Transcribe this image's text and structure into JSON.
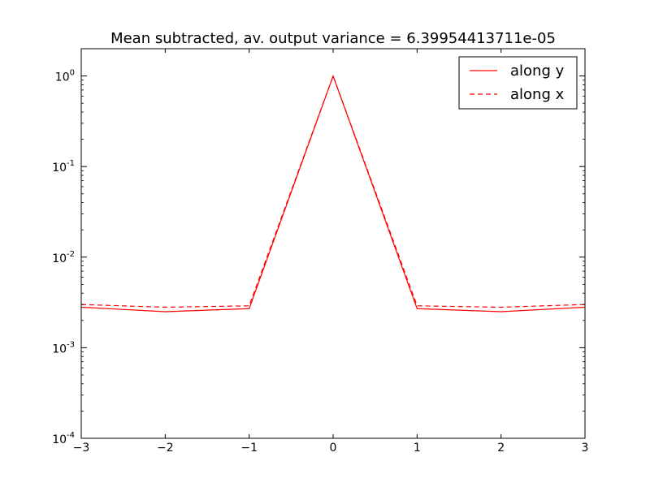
{
  "chart_data": {
    "type": "line",
    "title": "Mean subtracted, av. output variance = 6.39954413711e-05",
    "xlabel": "",
    "ylabel": "",
    "x": [
      -3,
      -2,
      -1,
      0,
      1,
      2,
      3
    ],
    "xlim": [
      -3,
      3
    ],
    "ylim": [
      0.0001,
      2
    ],
    "yscale": "log",
    "grid": false,
    "legend_position": "top-right",
    "x_ticks": [
      {
        "value": -3,
        "label": "−3"
      },
      {
        "value": -2,
        "label": "−2"
      },
      {
        "value": -1,
        "label": "−1"
      },
      {
        "value": 0,
        "label": "0"
      },
      {
        "value": 1,
        "label": "1"
      },
      {
        "value": 2,
        "label": "2"
      },
      {
        "value": 3,
        "label": "3"
      }
    ],
    "y_ticks": [
      {
        "value": 1,
        "base": "10",
        "exp": "0"
      },
      {
        "value": 0.1,
        "base": "10",
        "exp": "-1"
      },
      {
        "value": 0.01,
        "base": "10",
        "exp": "-2"
      },
      {
        "value": 0.001,
        "base": "10",
        "exp": "-3"
      },
      {
        "value": 0.0001,
        "base": "10",
        "exp": "-4"
      }
    ],
    "series": [
      {
        "name": "along y",
        "color": "#ff0000",
        "style": "solid",
        "values": [
          0.0028,
          0.0025,
          0.0027,
          1.0,
          0.0027,
          0.0025,
          0.0028
        ]
      },
      {
        "name": "along x",
        "color": "#ff0000",
        "style": "dashed",
        "values": [
          0.003,
          0.0028,
          0.0029,
          1.0,
          0.0029,
          0.0028,
          0.003
        ]
      }
    ]
  }
}
